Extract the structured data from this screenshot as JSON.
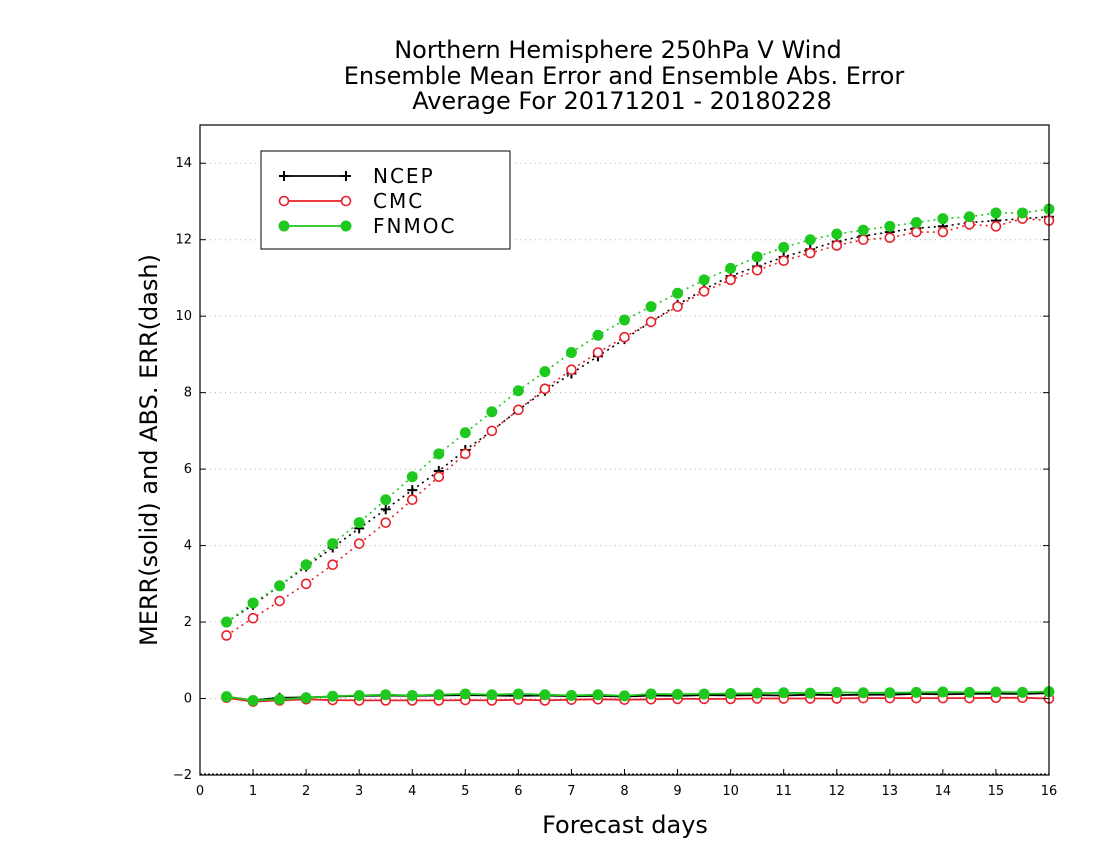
{
  "chart_data": {
    "type": "line",
    "title": [
      "Northern Hemisphere 250hPa V Wind",
      "Ensemble Mean Error and Ensemble Abs. Error",
      "Average For 20171201 - 20180228"
    ],
    "xlabel": "Forecast days",
    "ylabel": "MERR(solid) and ABS. ERR(dash)",
    "xlim": [
      0,
      16
    ],
    "ylim": [
      -2,
      15
    ],
    "xticks": [
      0,
      1,
      2,
      3,
      4,
      5,
      6,
      7,
      8,
      9,
      10,
      11,
      12,
      13,
      14,
      15,
      16
    ],
    "yticks": [
      -2,
      0,
      2,
      4,
      6,
      8,
      10,
      12,
      14
    ],
    "grid": "horizontal dotted",
    "legend_position": "top-left",
    "x": [
      0.5,
      1,
      1.5,
      2,
      2.5,
      3,
      3.5,
      4,
      4.5,
      5,
      5.5,
      6,
      6.5,
      7,
      7.5,
      8,
      8.5,
      9,
      9.5,
      10,
      10.5,
      11,
      11.5,
      12,
      12.5,
      13,
      13.5,
      14,
      14.5,
      15,
      15.5,
      16
    ],
    "series": [
      {
        "name": "NCEP",
        "color": "#000000",
        "marker": "plus",
        "abs_err": [
          2.0,
          2.45,
          2.95,
          3.45,
          3.95,
          4.45,
          4.95,
          5.45,
          5.95,
          6.5,
          7.0,
          7.55,
          8.05,
          8.5,
          8.95,
          9.4,
          9.85,
          10.3,
          10.7,
          11.05,
          11.3,
          11.55,
          11.75,
          11.95,
          12.1,
          12.2,
          12.3,
          12.35,
          12.45,
          12.5,
          12.55,
          12.6
        ],
        "mean_err": [
          0.05,
          -0.05,
          0.02,
          0.03,
          0.05,
          0.07,
          0.08,
          0.07,
          0.08,
          0.09,
          0.08,
          0.07,
          0.08,
          0.06,
          0.07,
          0.05,
          0.08,
          0.07,
          0.09,
          0.08,
          0.09,
          0.08,
          0.1,
          0.09,
          0.1,
          0.1,
          0.12,
          0.11,
          0.12,
          0.13,
          0.12,
          0.14
        ]
      },
      {
        "name": "CMC",
        "color": "#e8202a",
        "marker": "open-circle",
        "abs_err": [
          1.65,
          2.1,
          2.55,
          3.0,
          3.5,
          4.05,
          4.6,
          5.2,
          5.8,
          6.4,
          7.0,
          7.55,
          8.1,
          8.6,
          9.05,
          9.45,
          9.85,
          10.25,
          10.65,
          10.95,
          11.2,
          11.45,
          11.65,
          11.85,
          12.0,
          12.05,
          12.2,
          12.2,
          12.4,
          12.35,
          12.55,
          12.5
        ],
        "mean_err": [
          0.02,
          -0.08,
          -0.05,
          -0.02,
          -0.04,
          -0.05,
          -0.05,
          -0.05,
          -0.05,
          -0.04,
          -0.05,
          -0.03,
          -0.05,
          -0.03,
          -0.02,
          -0.03,
          -0.02,
          -0.01,
          -0.01,
          -0.01,
          0.0,
          0.0,
          0.0,
          0.0,
          0.01,
          0.01,
          0.01,
          0.01,
          0.01,
          0.02,
          0.02,
          0.0
        ]
      },
      {
        "name": "FNMOC",
        "color": "#1ec81e",
        "marker": "filled-circle",
        "abs_err": [
          2.0,
          2.5,
          2.95,
          3.5,
          4.05,
          4.6,
          5.2,
          5.8,
          6.4,
          6.95,
          7.5,
          8.05,
          8.55,
          9.05,
          9.5,
          9.9,
          10.25,
          10.6,
          10.95,
          11.25,
          11.55,
          11.8,
          12.0,
          12.15,
          12.25,
          12.35,
          12.45,
          12.55,
          12.6,
          12.7,
          12.7,
          12.8
        ],
        "mean_err": [
          0.05,
          -0.05,
          -0.02,
          0.02,
          0.06,
          0.08,
          0.1,
          0.08,
          0.1,
          0.12,
          0.1,
          0.12,
          0.1,
          0.08,
          0.1,
          0.07,
          0.12,
          0.11,
          0.12,
          0.13,
          0.14,
          0.15,
          0.14,
          0.16,
          0.15,
          0.15,
          0.16,
          0.17,
          0.16,
          0.17,
          0.16,
          0.18
        ]
      }
    ]
  }
}
